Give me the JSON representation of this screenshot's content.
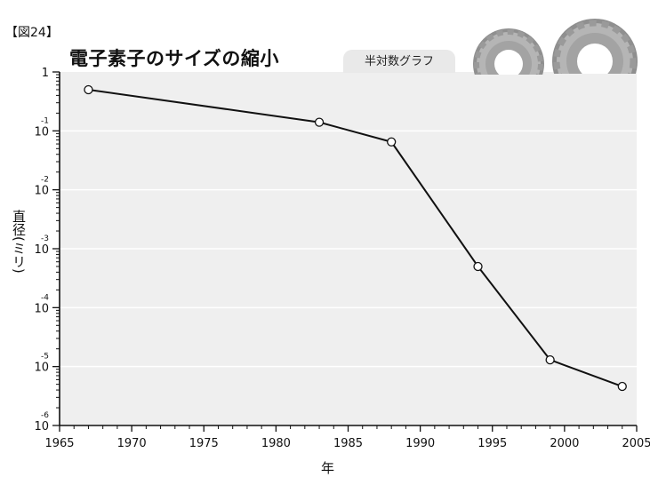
{
  "figure_label": "【図24】",
  "scale_tab_label": "半対数グラフ",
  "icons": [
    "gear-icon",
    "gear-icon"
  ],
  "colors": {
    "plot_background": "#efefef",
    "grid": "#ffffff",
    "line": "#111111",
    "marker_fill": "#ffffff",
    "gear": "#a9a9a9"
  },
  "chart_data": {
    "type": "line",
    "title": "電子素子のサイズの縮小",
    "xlabel": "年",
    "ylabel": "直径(ミリ)",
    "y_scale": "log",
    "xlim": [
      1965,
      2005
    ],
    "ylim": [
      1e-06,
      1
    ],
    "x_ticks": [
      1965,
      1970,
      1975,
      1980,
      1985,
      1990,
      1995,
      2000,
      2005
    ],
    "y_ticks": [
      {
        "value": 1,
        "base": "1",
        "exp": ""
      },
      {
        "value": 0.1,
        "base": "10",
        "exp": "-1"
      },
      {
        "value": 0.01,
        "base": "10",
        "exp": "-2"
      },
      {
        "value": 0.001,
        "base": "10",
        "exp": "-3"
      },
      {
        "value": 0.0001,
        "base": "10",
        "exp": "-4"
      },
      {
        "value": 1e-05,
        "base": "10",
        "exp": "-5"
      },
      {
        "value": 1e-06,
        "base": "10",
        "exp": "-6"
      }
    ],
    "grid": true,
    "series": [
      {
        "x": [
          1967,
          1983,
          1988,
          1994,
          1999,
          2004
        ],
        "y": [
          0.5,
          0.14,
          0.065,
          0.0005,
          1.3e-05,
          4.6e-06
        ]
      }
    ]
  }
}
